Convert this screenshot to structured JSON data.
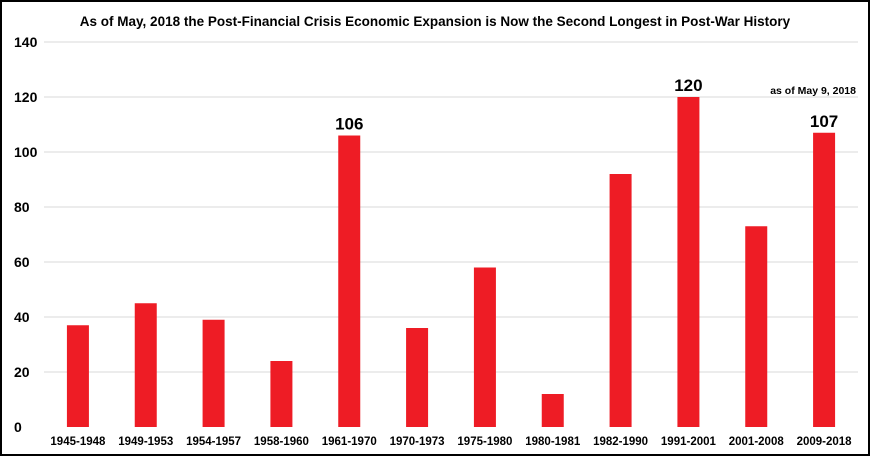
{
  "chart_data": {
    "type": "bar",
    "title": "As of May, 2018 the Post-Financial Crisis Economic Expansion is Now the Second Longest in Post-War History",
    "xlabel": "",
    "ylabel": "",
    "ylim": [
      0,
      140
    ],
    "yticks": [
      "0",
      "20",
      "40",
      "60",
      "80",
      "100",
      "120",
      "140"
    ],
    "grid": true,
    "bar_color": "#ee1c25",
    "categories": [
      "1945-1948",
      "1949-1953",
      "1954-1957",
      "1958-1960",
      "1961-1970",
      "1970-1973",
      "1975-1980",
      "1980-1981",
      "1982-1990",
      "1991-2001",
      "2001-2008",
      "2009-2018"
    ],
    "values": [
      37,
      45,
      39,
      24,
      106,
      36,
      58,
      12,
      92,
      120,
      73,
      107
    ],
    "data_labels": [
      {
        "index": 4,
        "text": "106"
      },
      {
        "index": 9,
        "text": "120"
      },
      {
        "index": 11,
        "text": "107"
      }
    ],
    "annotation": "as of May 9, 2018"
  }
}
